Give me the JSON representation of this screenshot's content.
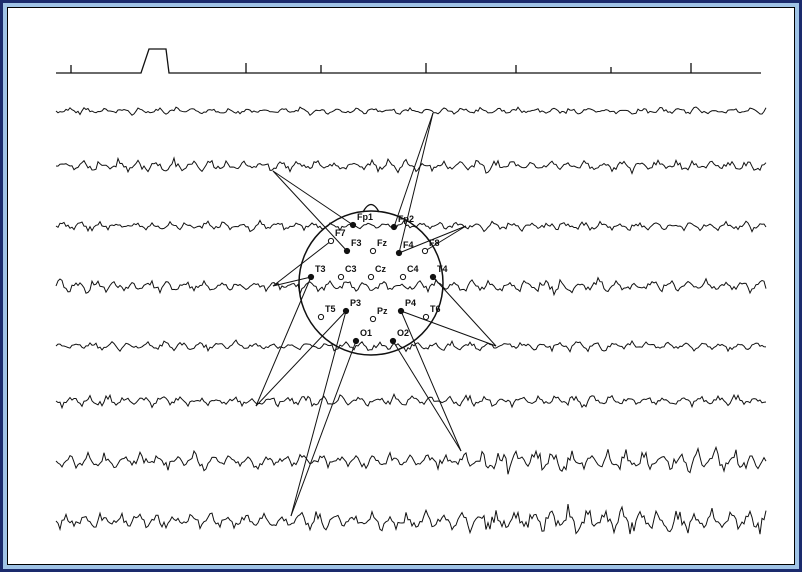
{
  "electrodes": [
    "Fp1",
    "Fp2",
    "F7",
    "F3",
    "Fz",
    "F4",
    "F8",
    "T3",
    "C3",
    "Cz",
    "C4",
    "T4",
    "T5",
    "P3",
    "Pz",
    "P4",
    "T6",
    "O1",
    "O2"
  ]
}
